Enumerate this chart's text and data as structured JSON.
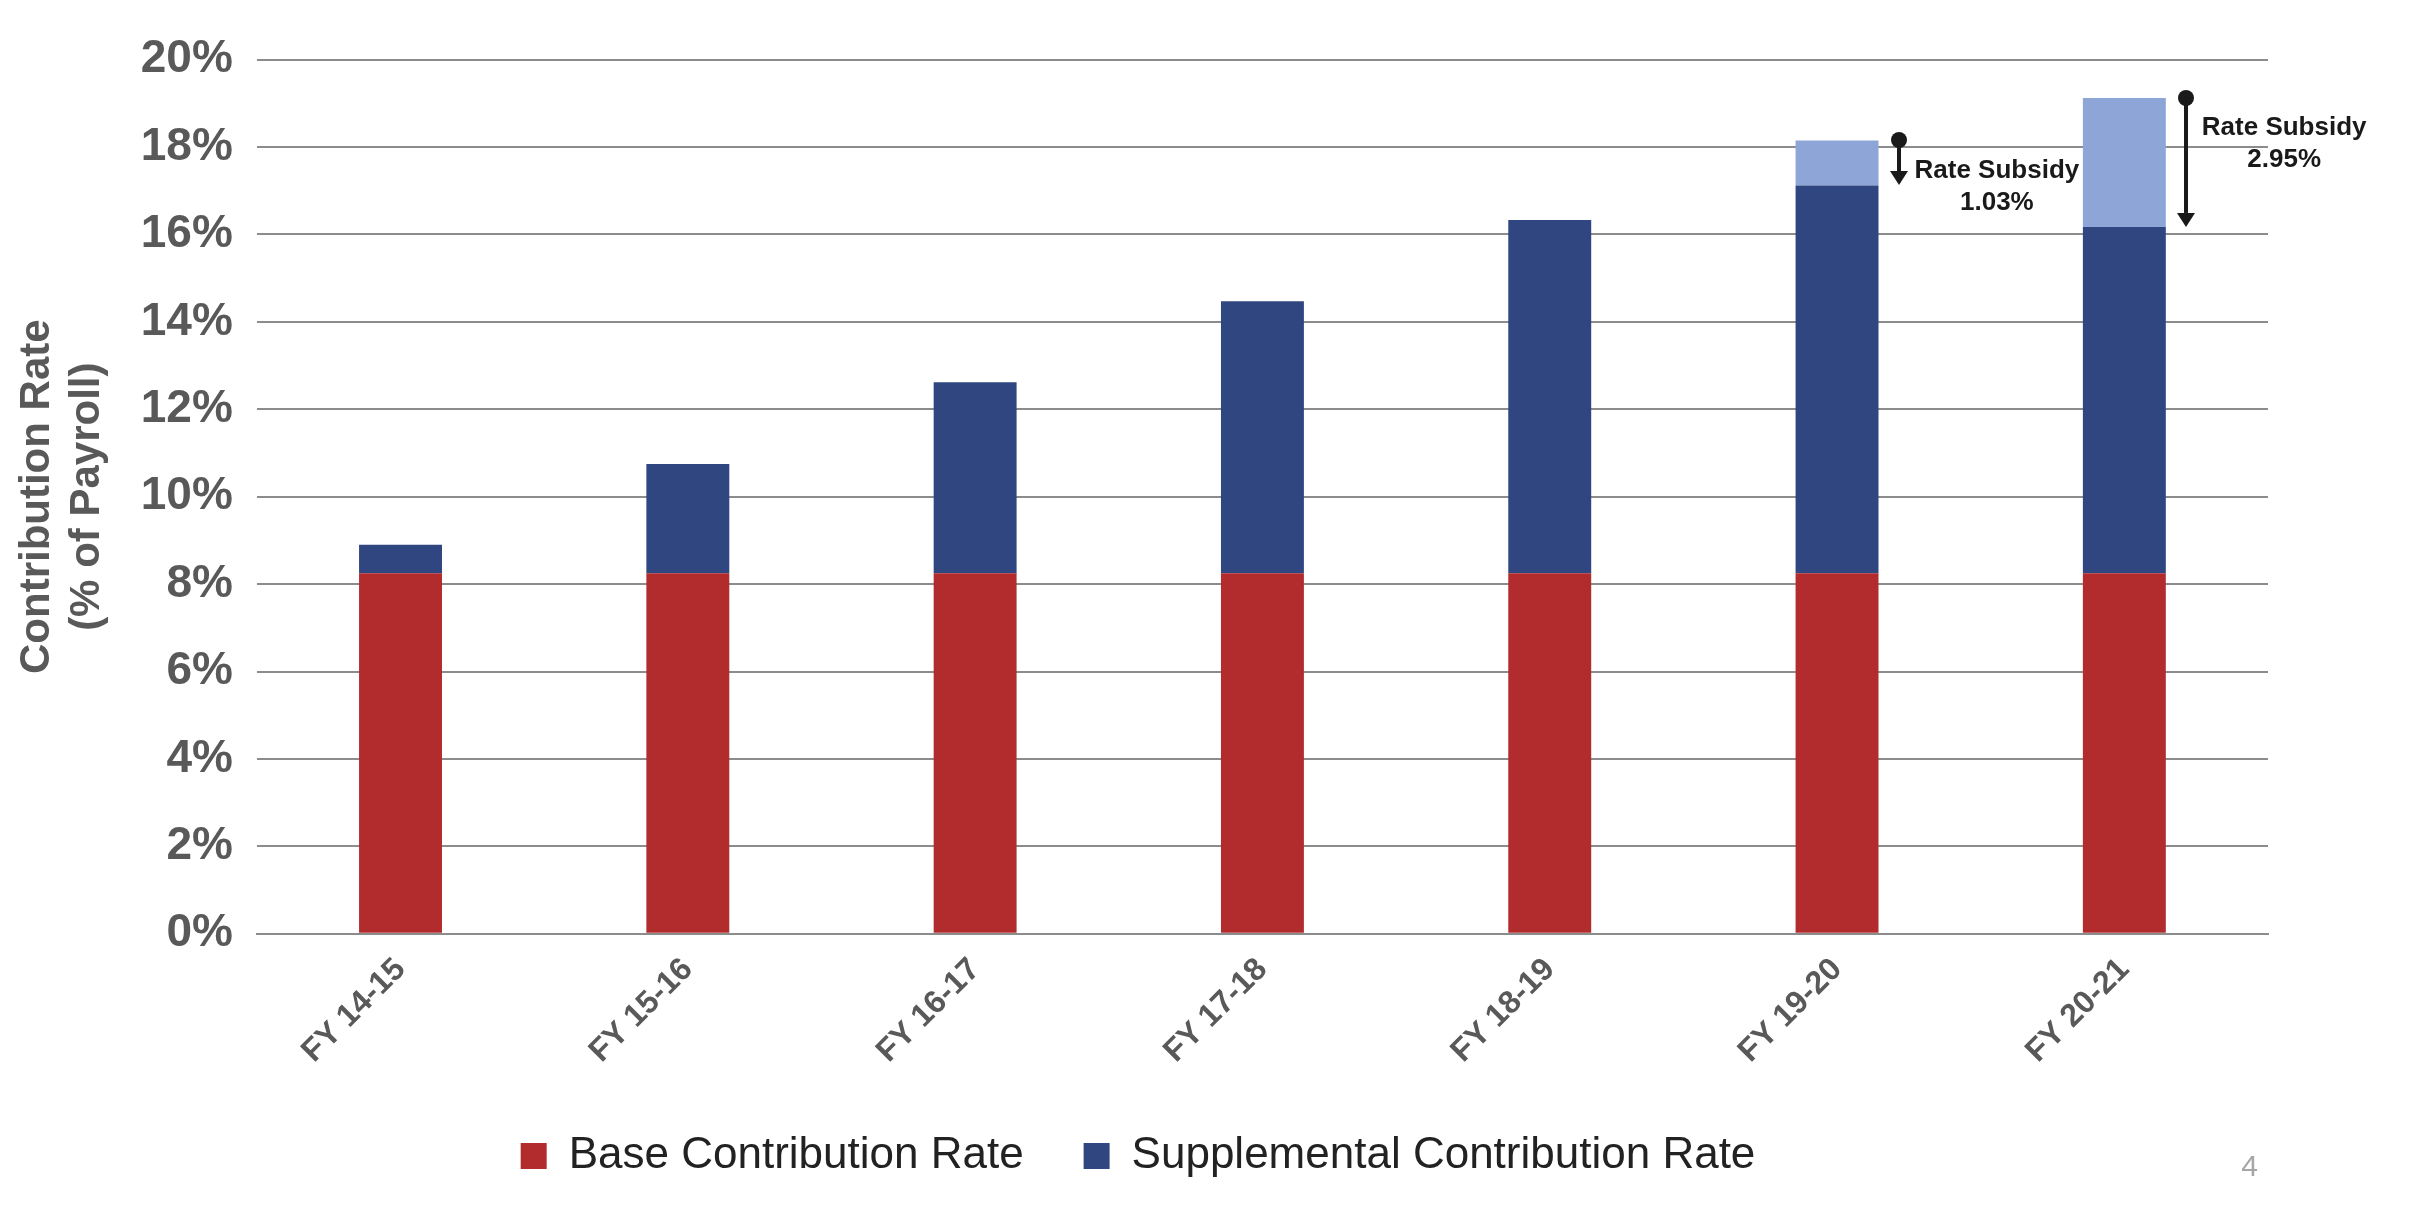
{
  "chart_data": {
    "type": "bar",
    "stacked": true,
    "ylabel": "Contribution Rate",
    "categories": [
      "FY 14-15",
      "FY 15-16",
      "FY 16-17",
      "FY 17-18",
      "FY 18-19",
      "FY 19-20",
      "FY 20-21"
    ],
    "series": [
      {
        "name": "Base Contribution Rate",
        "color": "#b22c2e",
        "values": [
          8.25,
          8.25,
          8.25,
          8.25,
          8.25,
          8.25,
          8.25
        ]
      },
      {
        "name": "Supplemental Contribution Rate",
        "color": "#2f4680",
        "values": [
          0.65,
          2.5,
          4.37,
          6.22,
          8.08,
          8.87,
          7.92
        ]
      },
      {
        "color": "#8ea5d8",
        "values": [
          null,
          null,
          null,
          null,
          null,
          1.03,
          2.95
        ]
      }
    ],
    "ylim": [
      0,
      20
    ],
    "yticks": [
      {
        "value": 0,
        "label": "0%"
      },
      {
        "value": 2,
        "label": "2%"
      },
      {
        "value": 4,
        "label": "4%"
      },
      {
        "value": 6,
        "label": "6%"
      },
      {
        "value": 8,
        "label": "8%"
      },
      {
        "value": 10,
        "label": "10%"
      },
      {
        "value": 12,
        "label": "12%"
      },
      {
        "value": 14,
        "label": "14%"
      },
      {
        "value": 16,
        "label": "16%"
      },
      {
        "value": 18,
        "label": "18%"
      },
      {
        "value": 20,
        "label": "20%"
      }
    ],
    "grid": "y",
    "legend": "bottom",
    "annotations": [
      "(% of Payroll)",
      "Rate Subsidy 1.03%",
      "Rate Subsidy 2.95%",
      "4"
    ]
  }
}
